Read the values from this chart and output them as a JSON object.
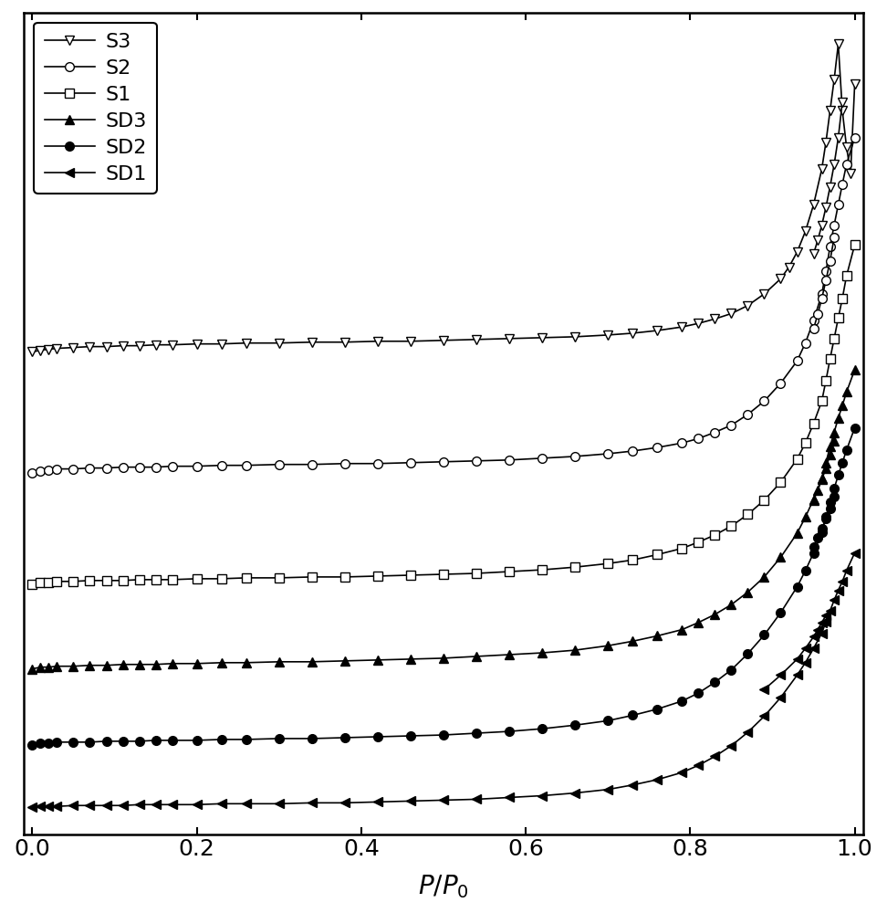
{
  "title": "",
  "xlabel": "$P/P_0$",
  "ylabel": "",
  "xlim": [
    -0.01,
    1.01
  ],
  "ylim": [
    -0.2,
    9.0
  ],
  "series_order": [
    "S3",
    "S2",
    "S1",
    "SD3",
    "SD2",
    "SD1"
  ],
  "series": {
    "S3": {
      "label": "S3",
      "marker": "v",
      "filled": false,
      "ads_x": [
        0.0,
        0.01,
        0.02,
        0.03,
        0.05,
        0.07,
        0.09,
        0.11,
        0.13,
        0.15,
        0.17,
        0.2,
        0.23,
        0.26,
        0.3,
        0.34,
        0.38,
        0.42,
        0.46,
        0.5,
        0.54,
        0.58,
        0.62,
        0.66,
        0.7,
        0.73,
        0.76,
        0.79,
        0.81,
        0.83,
        0.85,
        0.87,
        0.89,
        0.91,
        0.92,
        0.93,
        0.94,
        0.95,
        0.96,
        0.965,
        0.97,
        0.975,
        0.98,
        0.985,
        0.99,
        0.995,
        1.0
      ],
      "ads_y": [
        5.2,
        5.22,
        5.23,
        5.24,
        5.25,
        5.26,
        5.26,
        5.27,
        5.27,
        5.28,
        5.28,
        5.29,
        5.29,
        5.3,
        5.3,
        5.31,
        5.31,
        5.32,
        5.32,
        5.33,
        5.34,
        5.35,
        5.36,
        5.37,
        5.39,
        5.41,
        5.44,
        5.48,
        5.52,
        5.57,
        5.63,
        5.72,
        5.85,
        6.02,
        6.15,
        6.32,
        6.55,
        6.85,
        7.25,
        7.55,
        7.9,
        8.25,
        8.65,
        7.9,
        7.5,
        7.2,
        8.2
      ],
      "des_x": [
        0.985,
        0.98,
        0.975,
        0.97,
        0.965,
        0.96,
        0.955,
        0.95
      ],
      "des_y": [
        8.0,
        7.6,
        7.3,
        7.05,
        6.82,
        6.62,
        6.45,
        6.3
      ]
    },
    "S2": {
      "label": "S2",
      "marker": "o",
      "filled": false,
      "ads_x": [
        0.0,
        0.01,
        0.02,
        0.03,
        0.05,
        0.07,
        0.09,
        0.11,
        0.13,
        0.15,
        0.17,
        0.2,
        0.23,
        0.26,
        0.3,
        0.34,
        0.38,
        0.42,
        0.46,
        0.5,
        0.54,
        0.58,
        0.62,
        0.66,
        0.7,
        0.73,
        0.76,
        0.79,
        0.81,
        0.83,
        0.85,
        0.87,
        0.89,
        0.91,
        0.93,
        0.94,
        0.95,
        0.96,
        0.965,
        0.97,
        0.975,
        0.98,
        0.985,
        0.99,
        1.0
      ],
      "ads_y": [
        3.85,
        3.87,
        3.88,
        3.89,
        3.89,
        3.9,
        3.9,
        3.91,
        3.91,
        3.91,
        3.92,
        3.92,
        3.93,
        3.93,
        3.94,
        3.94,
        3.95,
        3.95,
        3.96,
        3.97,
        3.98,
        3.99,
        4.01,
        4.03,
        4.06,
        4.09,
        4.13,
        4.18,
        4.23,
        4.3,
        4.38,
        4.5,
        4.65,
        4.85,
        5.1,
        5.3,
        5.55,
        5.85,
        6.1,
        6.38,
        6.62,
        6.85,
        7.08,
        7.3,
        7.6
      ],
      "des_x": [
        0.975,
        0.97,
        0.965,
        0.96,
        0.955,
        0.95
      ],
      "des_y": [
        6.48,
        6.22,
        6.0,
        5.8,
        5.62,
        5.46
      ]
    },
    "S1": {
      "label": "S1",
      "marker": "s",
      "filled": false,
      "ads_x": [
        0.0,
        0.01,
        0.02,
        0.03,
        0.05,
        0.07,
        0.09,
        0.11,
        0.13,
        0.15,
        0.17,
        0.2,
        0.23,
        0.26,
        0.3,
        0.34,
        0.38,
        0.42,
        0.46,
        0.5,
        0.54,
        0.58,
        0.62,
        0.66,
        0.7,
        0.73,
        0.76,
        0.79,
        0.81,
        0.83,
        0.85,
        0.87,
        0.89,
        0.91,
        0.93,
        0.94,
        0.95,
        0.96,
        0.965,
        0.97,
        0.975,
        0.98,
        0.985,
        0.99,
        1.0
      ],
      "ads_y": [
        2.6,
        2.62,
        2.62,
        2.63,
        2.63,
        2.64,
        2.64,
        2.64,
        2.65,
        2.65,
        2.65,
        2.66,
        2.66,
        2.67,
        2.67,
        2.68,
        2.68,
        2.69,
        2.7,
        2.71,
        2.72,
        2.74,
        2.76,
        2.79,
        2.83,
        2.87,
        2.93,
        3.0,
        3.07,
        3.15,
        3.25,
        3.38,
        3.54,
        3.74,
        4.0,
        4.18,
        4.4,
        4.65,
        4.88,
        5.12,
        5.35,
        5.58,
        5.8,
        6.05,
        6.4
      ],
      "des_x": [],
      "des_y": []
    },
    "SD3": {
      "label": "SD3",
      "marker": "^",
      "filled": true,
      "ads_x": [
        0.0,
        0.01,
        0.02,
        0.03,
        0.05,
        0.07,
        0.09,
        0.11,
        0.13,
        0.15,
        0.17,
        0.2,
        0.23,
        0.26,
        0.3,
        0.34,
        0.38,
        0.42,
        0.46,
        0.5,
        0.54,
        0.58,
        0.62,
        0.66,
        0.7,
        0.73,
        0.76,
        0.79,
        0.81,
        0.83,
        0.85,
        0.87,
        0.89,
        0.91,
        0.93,
        0.94,
        0.95,
        0.96,
        0.965,
        0.97,
        0.975,
        0.98,
        0.985,
        0.99,
        1.0
      ],
      "ads_y": [
        1.65,
        1.67,
        1.67,
        1.68,
        1.68,
        1.69,
        1.69,
        1.7,
        1.7,
        1.7,
        1.71,
        1.71,
        1.72,
        1.72,
        1.73,
        1.73,
        1.74,
        1.75,
        1.76,
        1.77,
        1.79,
        1.81,
        1.83,
        1.86,
        1.91,
        1.96,
        2.02,
        2.09,
        2.17,
        2.26,
        2.37,
        2.51,
        2.68,
        2.9,
        3.17,
        3.35,
        3.55,
        3.78,
        3.96,
        4.14,
        4.3,
        4.46,
        4.6,
        4.75,
        5.0
      ],
      "des_x": [
        0.975,
        0.97,
        0.965,
        0.96,
        0.955,
        0.95
      ],
      "des_y": [
        4.2,
        4.05,
        3.9,
        3.77,
        3.65,
        3.54
      ]
    },
    "SD2": {
      "label": "SD2",
      "marker": "o",
      "filled": true,
      "ads_x": [
        0.0,
        0.01,
        0.02,
        0.03,
        0.05,
        0.07,
        0.09,
        0.11,
        0.13,
        0.15,
        0.17,
        0.2,
        0.23,
        0.26,
        0.3,
        0.34,
        0.38,
        0.42,
        0.46,
        0.5,
        0.54,
        0.58,
        0.62,
        0.66,
        0.7,
        0.73,
        0.76,
        0.79,
        0.81,
        0.83,
        0.85,
        0.87,
        0.89,
        0.91,
        0.93,
        0.94,
        0.95,
        0.96,
        0.965,
        0.97,
        0.975,
        0.98,
        0.985,
        0.99,
        1.0
      ],
      "ads_y": [
        0.8,
        0.82,
        0.82,
        0.83,
        0.83,
        0.83,
        0.84,
        0.84,
        0.84,
        0.85,
        0.85,
        0.85,
        0.86,
        0.86,
        0.87,
        0.87,
        0.88,
        0.89,
        0.9,
        0.91,
        0.93,
        0.95,
        0.98,
        1.02,
        1.07,
        1.13,
        1.2,
        1.29,
        1.38,
        1.5,
        1.64,
        1.82,
        2.03,
        2.28,
        2.57,
        2.75,
        2.95,
        3.18,
        3.35,
        3.52,
        3.67,
        3.82,
        3.96,
        4.1,
        4.35
      ],
      "des_x": [
        0.975,
        0.97,
        0.965,
        0.96,
        0.955,
        0.95
      ],
      "des_y": [
        3.58,
        3.45,
        3.33,
        3.22,
        3.12,
        3.02
      ]
    },
    "SD1": {
      "label": "SD1",
      "marker": "<",
      "filled": true,
      "ads_x": [
        0.0,
        0.01,
        0.02,
        0.03,
        0.05,
        0.07,
        0.09,
        0.11,
        0.13,
        0.15,
        0.17,
        0.2,
        0.23,
        0.26,
        0.3,
        0.34,
        0.38,
        0.42,
        0.46,
        0.5,
        0.54,
        0.58,
        0.62,
        0.66,
        0.7,
        0.73,
        0.76,
        0.79,
        0.81,
        0.83,
        0.85,
        0.87,
        0.89,
        0.91,
        0.93,
        0.94,
        0.95,
        0.96,
        0.965,
        0.97,
        0.975,
        0.98,
        0.985,
        0.99,
        1.0
      ],
      "ads_y": [
        0.1,
        0.11,
        0.11,
        0.11,
        0.12,
        0.12,
        0.12,
        0.12,
        0.13,
        0.13,
        0.13,
        0.13,
        0.14,
        0.14,
        0.14,
        0.15,
        0.15,
        0.16,
        0.17,
        0.18,
        0.19,
        0.21,
        0.23,
        0.26,
        0.3,
        0.35,
        0.41,
        0.49,
        0.57,
        0.67,
        0.79,
        0.94,
        1.12,
        1.33,
        1.58,
        1.72,
        1.88,
        2.05,
        2.18,
        2.3,
        2.42,
        2.53,
        2.63,
        2.75,
        2.95
      ],
      "des_x": [
        0.965,
        0.96,
        0.955,
        0.95,
        0.94,
        0.93,
        0.91,
        0.89
      ],
      "des_y": [
        2.25,
        2.17,
        2.09,
        2.01,
        1.88,
        1.76,
        1.58,
        1.42
      ]
    }
  },
  "color": "#000000",
  "fontsize": 18,
  "marker_size": 7,
  "linewidth": 1.2,
  "n_flat_markers": 40
}
